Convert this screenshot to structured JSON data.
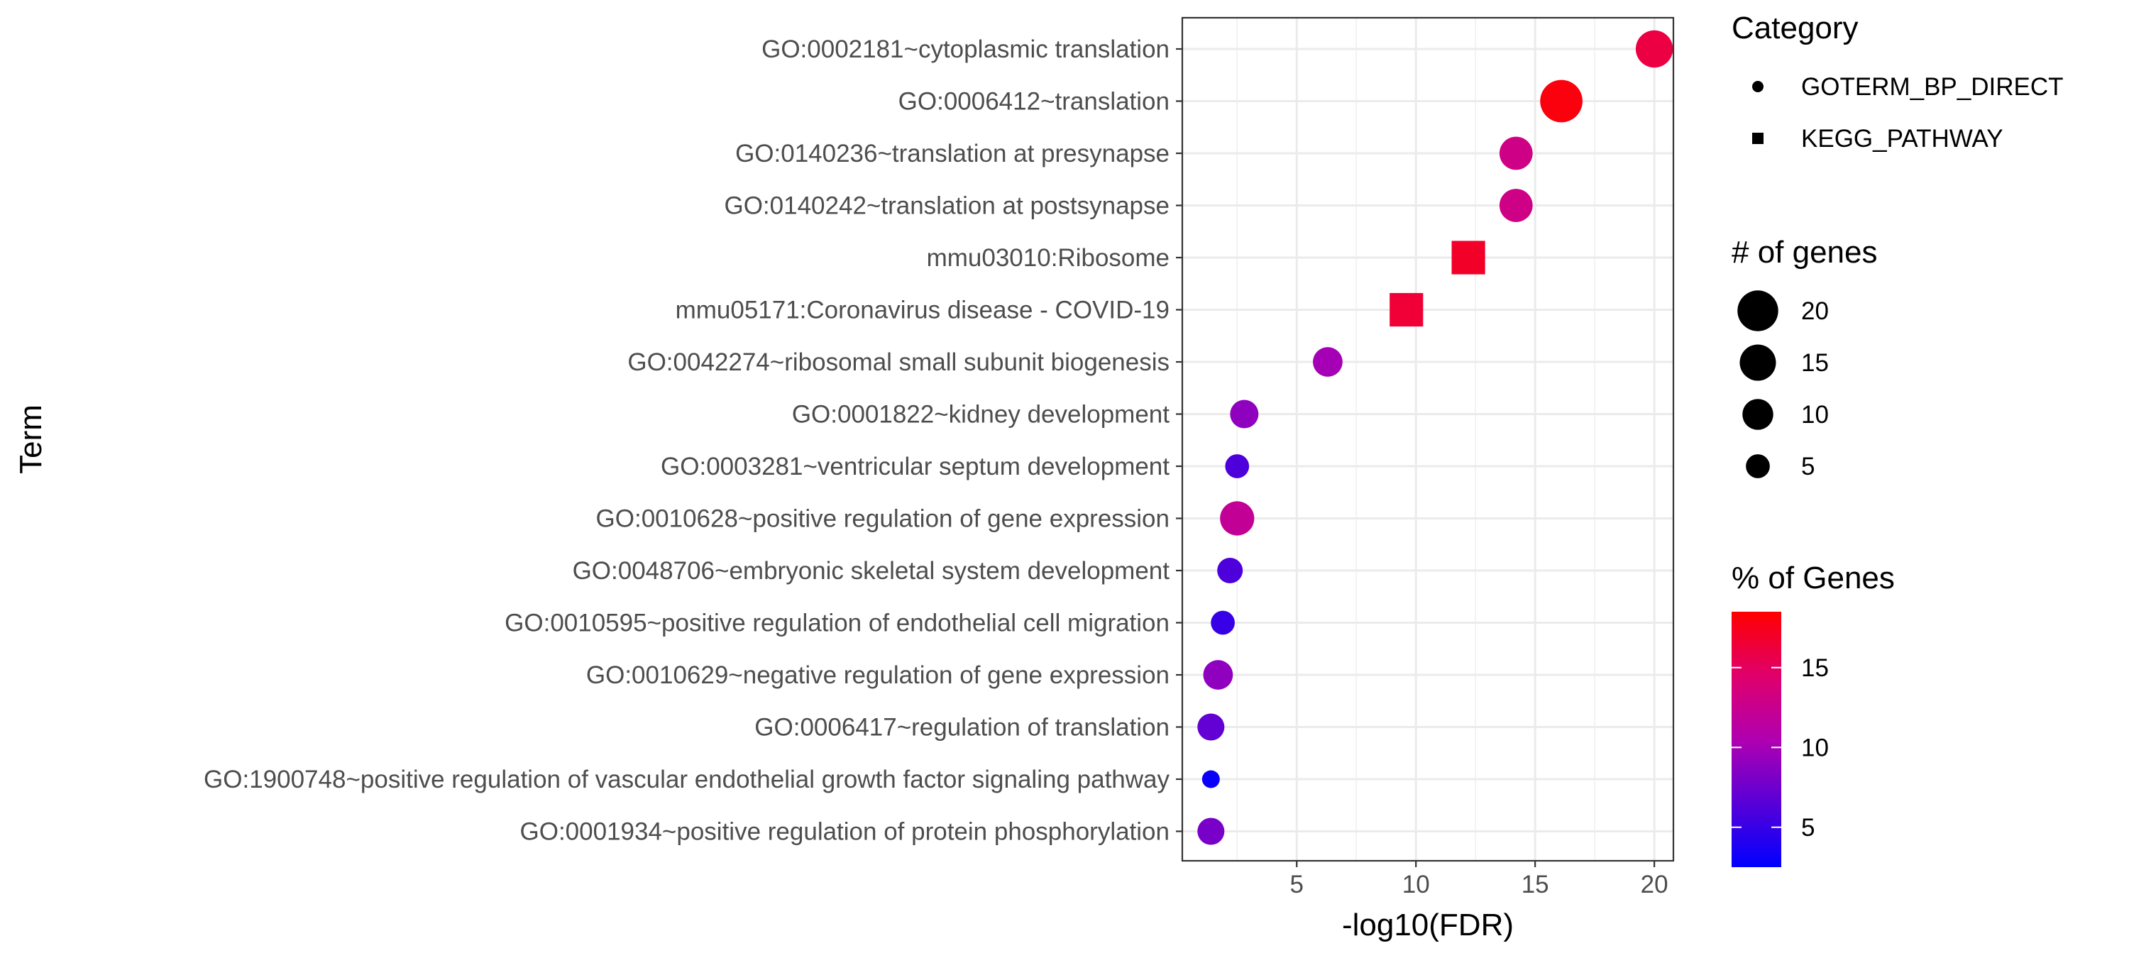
{
  "chart_data": {
    "type": "scatter",
    "xlabel": "-log10(FDR)",
    "ylabel": "Term",
    "xlim": [
      0.2,
      20.8
    ],
    "x_ticks": [
      5,
      10,
      15,
      20
    ],
    "grid": true,
    "legend_position": "right",
    "points": [
      {
        "term": "GO:0002181~cytoplasmic translation",
        "fdr": 20.0,
        "genes": 16,
        "pct": 16.0,
        "category": "GOTERM_BP_DIRECT"
      },
      {
        "term": "GO:0006412~translation",
        "fdr": 16.1,
        "genes": 22,
        "pct": 18.0,
        "category": "GOTERM_BP_DIRECT"
      },
      {
        "term": "GO:0140236~translation at presynapse",
        "fdr": 14.2,
        "genes": 12,
        "pct": 13.0,
        "category": "GOTERM_BP_DIRECT"
      },
      {
        "term": "GO:0140242~translation at postsynapse",
        "fdr": 14.2,
        "genes": 12,
        "pct": 13.0,
        "category": "GOTERM_BP_DIRECT"
      },
      {
        "term": "mmu03010:Ribosome",
        "fdr": 12.2,
        "genes": 16,
        "pct": 17.0,
        "category": "KEGG_PATHWAY"
      },
      {
        "term": "mmu05171:Coronavirus disease - COVID-19",
        "fdr": 9.6,
        "genes": 16,
        "pct": 16.5,
        "category": "KEGG_PATHWAY"
      },
      {
        "term": "GO:0042274~ribosomal small subunit biogenesis",
        "fdr": 6.3,
        "genes": 9,
        "pct": 10.0,
        "category": "GOTERM_BP_DIRECT"
      },
      {
        "term": "GO:0001822~kidney development",
        "fdr": 2.8,
        "genes": 8,
        "pct": 9.0,
        "category": "GOTERM_BP_DIRECT"
      },
      {
        "term": "GO:0003281~ventricular septum development",
        "fdr": 2.5,
        "genes": 5,
        "pct": 6.0,
        "category": "GOTERM_BP_DIRECT"
      },
      {
        "term": "GO:0010628~positive regulation of gene expression",
        "fdr": 2.5,
        "genes": 13,
        "pct": 12.0,
        "category": "GOTERM_BP_DIRECT"
      },
      {
        "term": "GO:0048706~embryonic skeletal system development",
        "fdr": 2.2,
        "genes": 6,
        "pct": 6.0,
        "category": "GOTERM_BP_DIRECT"
      },
      {
        "term": "GO:0010595~positive regulation of endothelial cell migration",
        "fdr": 1.9,
        "genes": 5,
        "pct": 5.0,
        "category": "GOTERM_BP_DIRECT"
      },
      {
        "term": "GO:0010629~negative regulation of gene expression",
        "fdr": 1.7,
        "genes": 9,
        "pct": 9.0,
        "category": "GOTERM_BP_DIRECT"
      },
      {
        "term": "GO:0006417~regulation of translation",
        "fdr": 1.4,
        "genes": 7,
        "pct": 7.0,
        "category": "GOTERM_BP_DIRECT"
      },
      {
        "term": "GO:1900748~positive regulation of vascular endothelial growth factor signaling pathway",
        "fdr": 1.4,
        "genes": 2,
        "pct": 3.0,
        "category": "GOTERM_BP_DIRECT"
      },
      {
        "term": "GO:0001934~positive regulation of protein phosphorylation",
        "fdr": 1.4,
        "genes": 7,
        "pct": 8.0,
        "category": "GOTERM_BP_DIRECT"
      }
    ],
    "legends": {
      "category": {
        "title": "Category",
        "items": [
          {
            "label": "GOTERM_BP_DIRECT",
            "shape": "circle"
          },
          {
            "label": "KEGG_PATHWAY",
            "shape": "square"
          }
        ]
      },
      "size": {
        "title": "# of genes",
        "items": [
          {
            "label": "20",
            "value": 20
          },
          {
            "label": "15",
            "value": 15
          },
          {
            "label": "10",
            "value": 10
          },
          {
            "label": "5",
            "value": 5
          }
        ]
      },
      "color": {
        "title": "% of Genes",
        "range": [
          2.5,
          18.5
        ],
        "ticks": [
          5,
          10,
          15
        ],
        "low_color": "#0000ff",
        "high_color": "#ff0000"
      }
    }
  }
}
